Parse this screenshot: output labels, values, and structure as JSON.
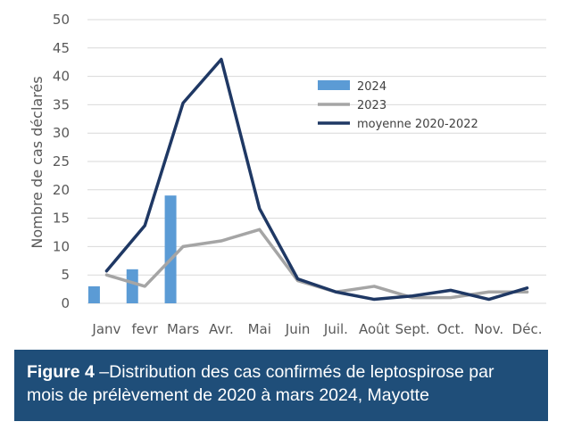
{
  "colors": {
    "bar_2024": "#5b9bd5",
    "line_2023": "#a5a5a5",
    "line_avg": "#1f3864",
    "grid": "#d9d9d9",
    "caption_bg": "#1f4e79",
    "caption_text": "#ffffff"
  },
  "caption": {
    "label": "Figure 4",
    "text": " –Distribution des cas confirmés de leptospirose par mois de prélèvement de 2020 à mars 2024, Mayotte"
  },
  "chart_data": {
    "type": "bar+line",
    "title": "",
    "xlabel": "",
    "ylabel": "Nombre de cas déclarés",
    "ylim": [
      0,
      50
    ],
    "yticks": [
      0,
      5,
      10,
      15,
      20,
      25,
      30,
      35,
      40,
      45,
      50
    ],
    "grid": true,
    "legend_position": "top-center",
    "categories": [
      "Janv",
      "fevr",
      "Mars",
      "Avr.",
      "Mai",
      "Juin",
      "Juil.",
      "Août",
      "Sept.",
      "Oct.",
      "Nov.",
      "Déc."
    ],
    "series": [
      {
        "name": "2024",
        "kind": "bar",
        "values": [
          3,
          6,
          19,
          null,
          null,
          null,
          null,
          null,
          null,
          null,
          null,
          null
        ]
      },
      {
        "name": "2023",
        "kind": "line",
        "values": [
          5,
          3,
          10,
          11,
          13,
          4,
          2,
          3,
          1,
          1,
          2,
          2
        ]
      },
      {
        "name": "moyenne 2020-2022",
        "kind": "line",
        "values": [
          5.7,
          13.7,
          35.3,
          43,
          16.7,
          4.3,
          2,
          0.7,
          1.3,
          2.3,
          0.7,
          2.7
        ]
      }
    ]
  }
}
